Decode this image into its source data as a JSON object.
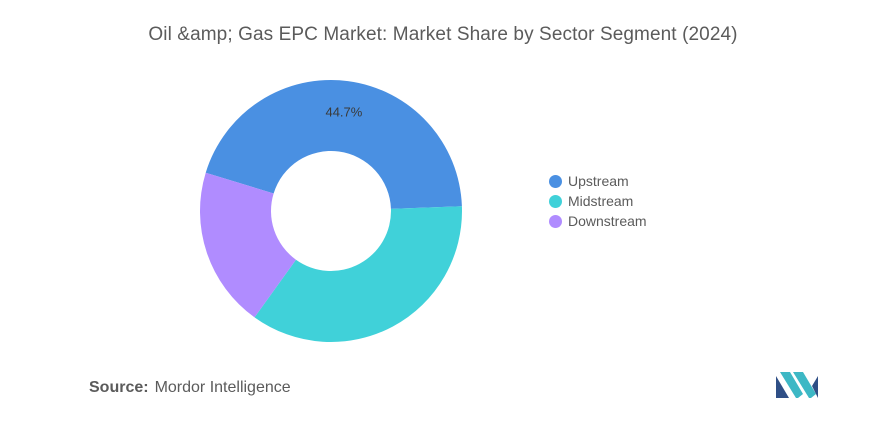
{
  "chart_data": {
    "type": "pie",
    "title": "Oil &amp; Gas EPC Market: Market Share by Sector Segment (2024)",
    "categories": [
      "Upstream",
      "Midstream",
      "Downstream"
    ],
    "values": [
      44.7,
      35.5,
      19.8
    ],
    "data_labels": [
      "44.7%",
      "",
      ""
    ],
    "colors": [
      "#4a90e2",
      "#40d1d9",
      "#b08cff"
    ],
    "donut": true,
    "legend_position": "right"
  },
  "source": {
    "label": "Source:",
    "text": "Mordor Intelligence"
  }
}
